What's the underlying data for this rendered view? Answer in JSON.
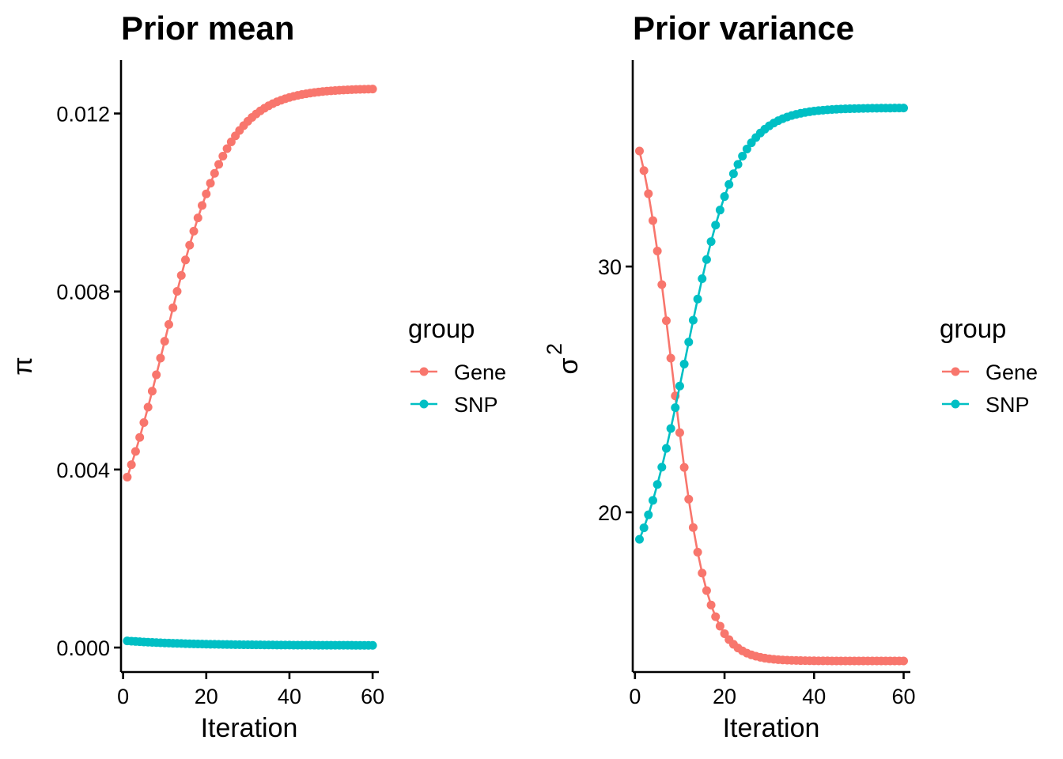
{
  "chart_data": [
    {
      "type": "line",
      "title": "Prior mean",
      "xlabel": "Iteration",
      "ylabel": "π",
      "xlim": [
        -0.5,
        61.5
      ],
      "ylim": [
        -0.00055,
        0.0132
      ],
      "x_ticks": [
        0,
        20,
        40,
        60
      ],
      "x_tick_labels": [
        "0",
        "20",
        "40",
        "60"
      ],
      "y_ticks": [
        0,
        0.004,
        0.008,
        0.012
      ],
      "y_tick_labels": [
        "0.000",
        "0.004",
        "0.008",
        "0.012"
      ],
      "legend": {
        "title": "group",
        "position": "right"
      },
      "series": [
        {
          "name": "Gene",
          "color": "#F8766D",
          "curve": {
            "kind": "logistic",
            "x_from": 1,
            "x_to": 60,
            "start": 0.00383,
            "end": 0.01255,
            "midpoint": 10,
            "scale": 7.5
          }
        },
        {
          "name": "SNP",
          "color": "#00BFC4",
          "curve": {
            "kind": "exp_decay",
            "x_from": 1,
            "x_to": 60,
            "start": 0.00015,
            "end": 5e-05,
            "tau": 15
          }
        }
      ]
    },
    {
      "type": "line",
      "title": "Prior variance",
      "xlabel": "Iteration",
      "ylabel": "σ",
      "ylabel_superscript": "2",
      "xlim": [
        -0.5,
        61.5
      ],
      "ylim": [
        13.5,
        38.4
      ],
      "x_ticks": [
        0,
        20,
        40,
        60
      ],
      "x_tick_labels": [
        "0",
        "20",
        "40",
        "60"
      ],
      "y_ticks": [
        20,
        30
      ],
      "y_tick_labels": [
        "20",
        "30"
      ],
      "legend": {
        "title": "group",
        "position": "right"
      },
      "series": [
        {
          "name": "Gene",
          "color": "#F8766D",
          "curve": {
            "kind": "logistic",
            "x_from": 1,
            "x_to": 60,
            "start": 34.7,
            "end": 13.95,
            "midpoint": 8.2,
            "scale": 3.9
          }
        },
        {
          "name": "SNP",
          "color": "#00BFC4",
          "curve": {
            "kind": "logistic",
            "x_from": 1,
            "x_to": 60,
            "start": 18.9,
            "end": 36.45,
            "midpoint": 11.2,
            "scale": 5.7
          }
        }
      ]
    }
  ]
}
